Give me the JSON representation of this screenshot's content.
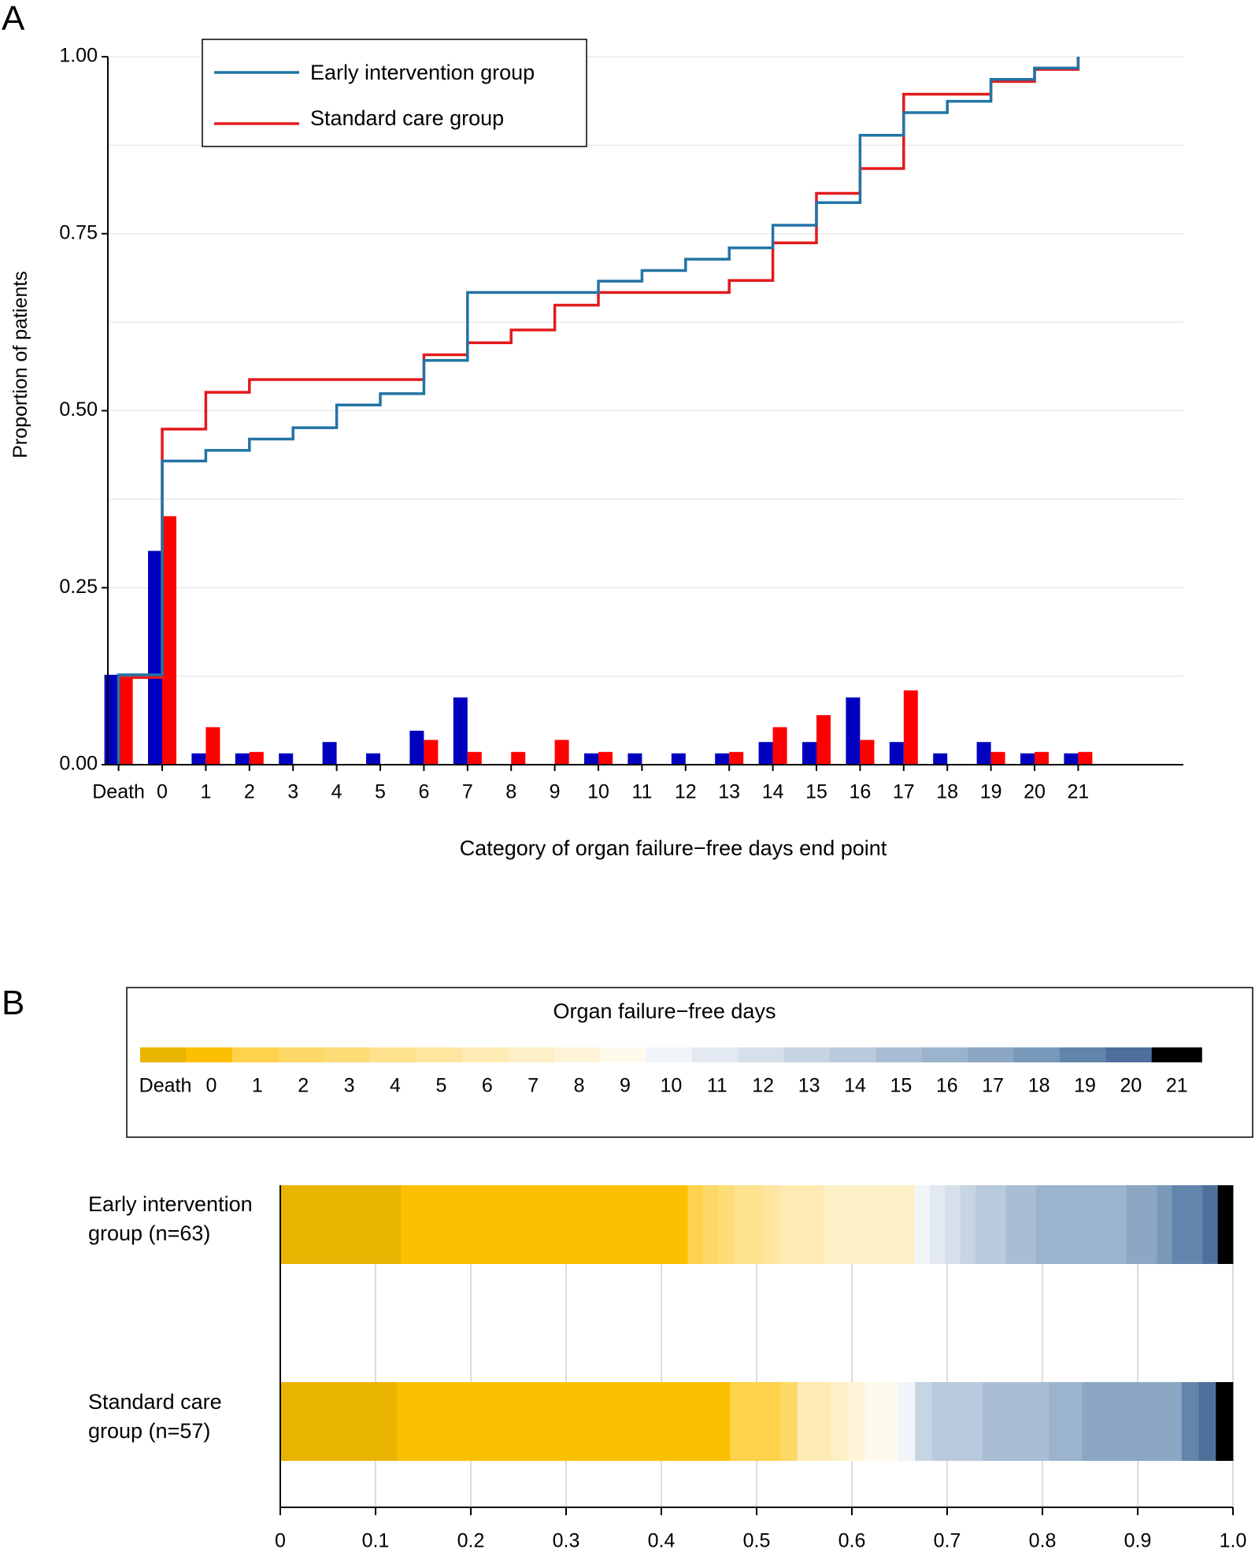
{
  "panelA": {
    "label": "A",
    "ylabel": "Proportion of patients",
    "xlabel": "Category of organ failure−free days end point",
    "legend": [
      "Early intervention group",
      "Standard care group"
    ],
    "colors": {
      "early_line": "#2274a5",
      "standard_line": "#e31a1c",
      "early_bar": "#0000c0",
      "standard_bar": "#ff0000",
      "grid": "#e6e6e6"
    }
  },
  "panelB": {
    "label": "B",
    "legend_title": "Organ failure−free days",
    "groups": [
      "Early intervention group (n=63)",
      "Standard care group (n=57)"
    ],
    "group_lines": [
      [
        "Early intervention",
        "group (n=63)"
      ],
      [
        "Standard care",
        "group (n=57)"
      ]
    ],
    "colors": [
      "#e8b400",
      "#fdc000",
      "#fed24c",
      "#fed866",
      "#fedc78",
      "#fee28e",
      "#fee6a0",
      "#feebb4",
      "#fef0c6",
      "#fef5d8",
      "#fefbec",
      "#f1f5f9",
      "#e3e9f1",
      "#d6e0ea",
      "#c6d4e3",
      "#b8cadc",
      "#a9bed4",
      "#9bb3cc",
      "#8ba7c3",
      "#7999ba",
      "#6285ad",
      "#4f6f9a"
    ]
  },
  "chart_data": [
    {
      "type": "bar",
      "title": "",
      "xlabel": "Category of organ failure−free days end point",
      "ylabel": "Proportion of patients",
      "ylim": [
        0,
        1
      ],
      "yticks": [
        "0.00",
        "0.25",
        "0.50",
        "0.75",
        "1.00"
      ],
      "categories": [
        "Death",
        "0",
        "1",
        "2",
        "3",
        "4",
        "5",
        "6",
        "7",
        "8",
        "9",
        "10",
        "11",
        "12",
        "13",
        "14",
        "15",
        "16",
        "17",
        "18",
        "19",
        "20",
        "21"
      ],
      "series": [
        {
          "name": "Early intervention group",
          "kind": "bar",
          "values": [
            0.127,
            0.302,
            0.016,
            0.016,
            0.016,
            0.032,
            0.016,
            0.048,
            0.095,
            0.0,
            0.0,
            0.016,
            0.016,
            0.016,
            0.016,
            0.032,
            0.032,
            0.095,
            0.032,
            0.016,
            0.032,
            0.016,
            0.016
          ]
        },
        {
          "name": "Standard care group",
          "kind": "bar",
          "values": [
            0.123,
            0.351,
            0.053,
            0.018,
            0.0,
            0.0,
            0.0,
            0.035,
            0.018,
            0.018,
            0.035,
            0.018,
            0.0,
            0.0,
            0.018,
            0.053,
            0.07,
            0.035,
            0.105,
            0.0,
            0.018,
            0.018,
            0.018
          ]
        },
        {
          "name": "Early intervention group",
          "kind": "step",
          "values": [
            0.127,
            0.429,
            0.444,
            0.46,
            0.476,
            0.508,
            0.524,
            0.571,
            0.667,
            0.667,
            0.667,
            0.683,
            0.698,
            0.714,
            0.73,
            0.762,
            0.794,
            0.889,
            0.921,
            0.937,
            0.968,
            0.984,
            1.0
          ]
        },
        {
          "name": "Standard care group",
          "kind": "step",
          "values": [
            0.123,
            0.474,
            0.526,
            0.544,
            0.544,
            0.544,
            0.544,
            0.579,
            0.596,
            0.614,
            0.649,
            0.667,
            0.667,
            0.667,
            0.684,
            0.737,
            0.807,
            0.842,
            0.947,
            0.947,
            0.965,
            0.982,
            1.0
          ]
        }
      ]
    },
    {
      "type": "bar",
      "subtype": "stacked-horizontal",
      "title": "Organ failure−free days",
      "xlim": [
        0,
        1
      ],
      "xticks": [
        "0",
        "0.1",
        "0.2",
        "0.3",
        "0.4",
        "0.5",
        "0.6",
        "0.7",
        "0.8",
        "0.9",
        "1.0"
      ],
      "categories": [
        "Death",
        "0",
        "1",
        "2",
        "3",
        "4",
        "5",
        "6",
        "7",
        "8",
        "9",
        "10",
        "11",
        "12",
        "13",
        "14",
        "15",
        "16",
        "17",
        "18",
        "19",
        "20",
        "21"
      ],
      "series": [
        {
          "name": "Early intervention group (n=63)",
          "values": [
            0.127,
            0.302,
            0.016,
            0.016,
            0.016,
            0.032,
            0.016,
            0.048,
            0.095,
            0.0,
            0.0,
            0.016,
            0.016,
            0.016,
            0.016,
            0.032,
            0.032,
            0.095,
            0.032,
            0.016,
            0.032,
            0.016,
            0.016
          ]
        },
        {
          "name": "Standard care group (n=57)",
          "values": [
            0.123,
            0.351,
            0.053,
            0.018,
            0.0,
            0.0,
            0.0,
            0.035,
            0.018,
            0.018,
            0.035,
            0.018,
            0.0,
            0.0,
            0.018,
            0.053,
            0.07,
            0.035,
            0.105,
            0.0,
            0.018,
            0.018,
            0.018
          ]
        }
      ]
    }
  ]
}
